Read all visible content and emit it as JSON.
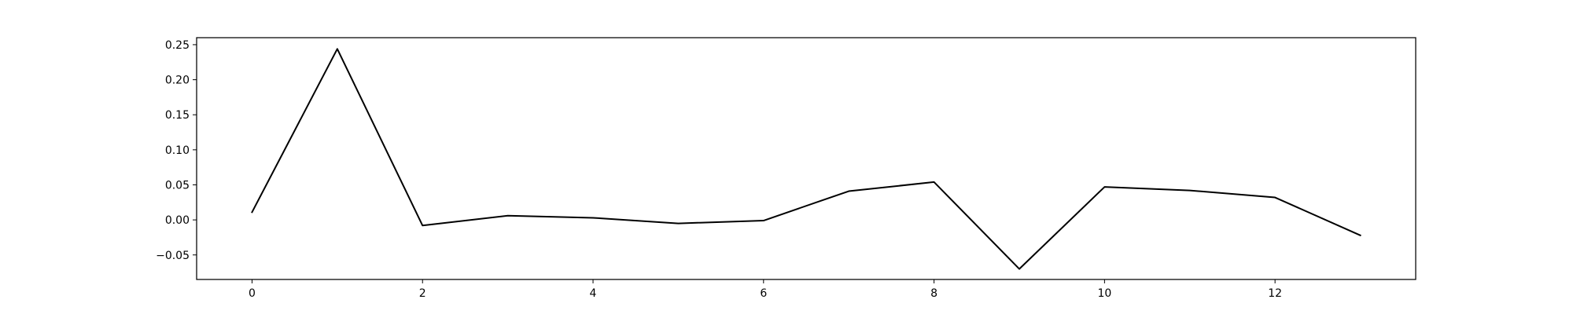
{
  "chart_data": {
    "type": "line",
    "title": "",
    "xlabel": "",
    "ylabel": "",
    "grid": false,
    "xlim": [
      -0.65,
      13.65
    ],
    "ylim": [
      -0.085,
      0.26
    ],
    "x_ticks": [
      0,
      2,
      4,
      6,
      8,
      10,
      12
    ],
    "x_tick_labels": [
      "0",
      "2",
      "4",
      "6",
      "8",
      "10",
      "12"
    ],
    "y_ticks": [
      -0.05,
      0.0,
      0.05,
      0.1,
      0.15,
      0.2,
      0.25
    ],
    "y_tick_labels": [
      "−0.05",
      "0.00",
      "0.05",
      "0.10",
      "0.15",
      "0.20",
      "0.25"
    ],
    "series": [
      {
        "color": "#000000",
        "x": [
          0,
          1,
          2,
          3,
          4,
          5,
          6,
          7,
          8,
          9,
          10,
          11,
          12,
          13
        ],
        "values": [
          0.011,
          0.244,
          -0.008,
          0.006,
          0.003,
          -0.005,
          -0.001,
          0.041,
          0.054,
          -0.07,
          0.047,
          0.042,
          0.032,
          -0.022
        ]
      }
    ]
  }
}
